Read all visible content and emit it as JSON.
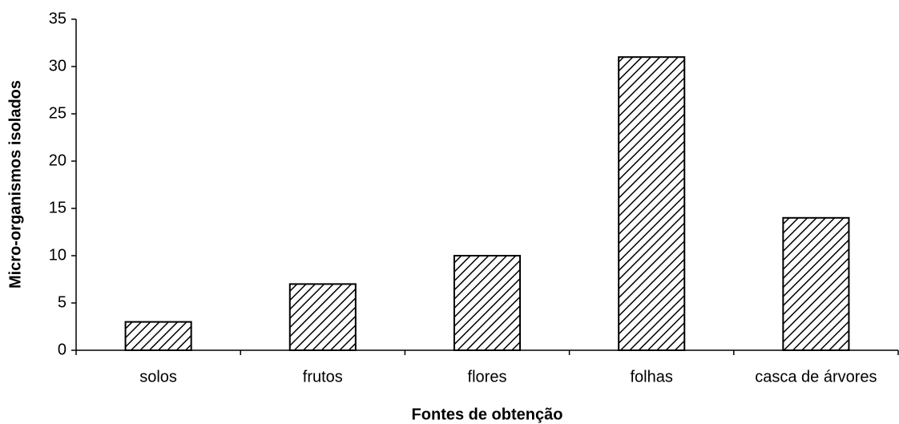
{
  "chart_data": {
    "type": "bar",
    "xlabel": "Fontes de obtenção",
    "ylabel": "Micro-organismos isolados",
    "categories": [
      "solos",
      "frutos",
      "flores",
      "folhas",
      "casca de árvores"
    ],
    "values": [
      3,
      7,
      10,
      31,
      14
    ],
    "color": "#000000",
    "pattern": "hatch",
    "ylim": [
      0,
      35
    ],
    "yticks": [
      0,
      5,
      10,
      15,
      20,
      25,
      30,
      35
    ],
    "grid": false
  }
}
